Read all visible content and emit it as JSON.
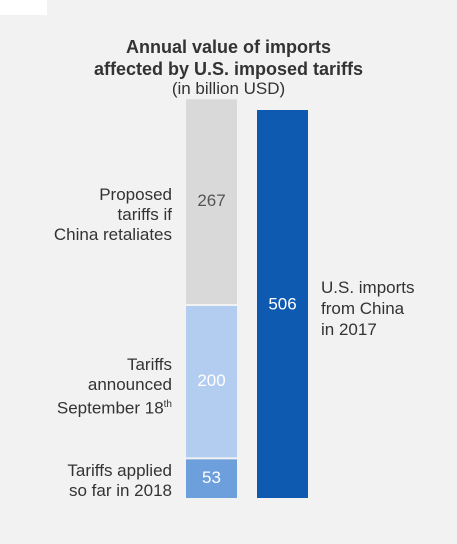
{
  "chart_data": {
    "type": "bar",
    "title": "Annual value of imports\naffected by U.S. imposed tariffs",
    "subtitle": "(in billion USD)",
    "stack_segments": [
      {
        "name": "Tariffs applied so far in 2018",
        "value": 53,
        "color": "#6d9fdc",
        "label_color": "#ffffff"
      },
      {
        "name": "Tariffs announced September 18th",
        "value": 200,
        "color": "#b3cdf0",
        "label_color": "#ffffff"
      },
      {
        "name": "Proposed tariffs if China retaliates",
        "value": 267,
        "color": "#d9d9d9",
        "label_color": "#555555"
      }
    ],
    "total_bar": {
      "name": "U.S. imports from China in 2017",
      "value": 506,
      "color": "#0e5ab0",
      "label_color": "#ffffff"
    }
  },
  "labels": {
    "title_line1": "Annual value of imports",
    "title_line2": "affected by U.S. imposed tariffs",
    "subtitle": "(in billion USD)",
    "proposed_line1": "Proposed",
    "proposed_line2": "tariffs if",
    "proposed_line3": "China retaliates",
    "announced_line1": "Tariffs",
    "announced_line2": "announced",
    "announced_line3": "September 18",
    "announced_sup": "th",
    "applied_line1": "Tariffs applied",
    "applied_line2": "so far in 2018",
    "total_line1": "U.S. imports",
    "total_line2": "from China",
    "total_line3": "in 2017"
  }
}
